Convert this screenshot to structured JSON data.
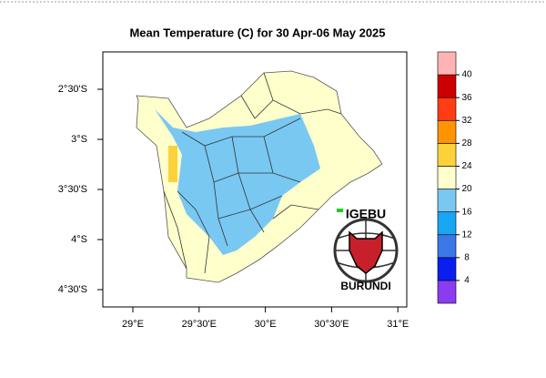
{
  "map": {
    "title": "Mean Temperature (C) for 30 Apr-06 May 2025",
    "lat_labels": [
      "2°30'S",
      "3°S",
      "3°30'S",
      "4°S",
      "4°30'S"
    ],
    "lon_labels": [
      "29°E",
      "29°30'E",
      "30°E",
      "30°30'E",
      "31°E"
    ],
    "colorbar": {
      "levels": [
        4,
        8,
        12,
        16,
        20,
        24,
        28,
        32,
        36,
        40
      ],
      "colors": [
        "#8a3cf0",
        "#0a1ef0",
        "#3a78e8",
        "#18a6f2",
        "#78c8f2",
        "#ffffcc",
        "#fbd23a",
        "#ff9400",
        "#ff3c14",
        "#cc0000",
        "#ffb4b4"
      ]
    },
    "logo": {
      "top_text": "IGEBU",
      "bottom_text": "BURUNDI"
    }
  }
}
